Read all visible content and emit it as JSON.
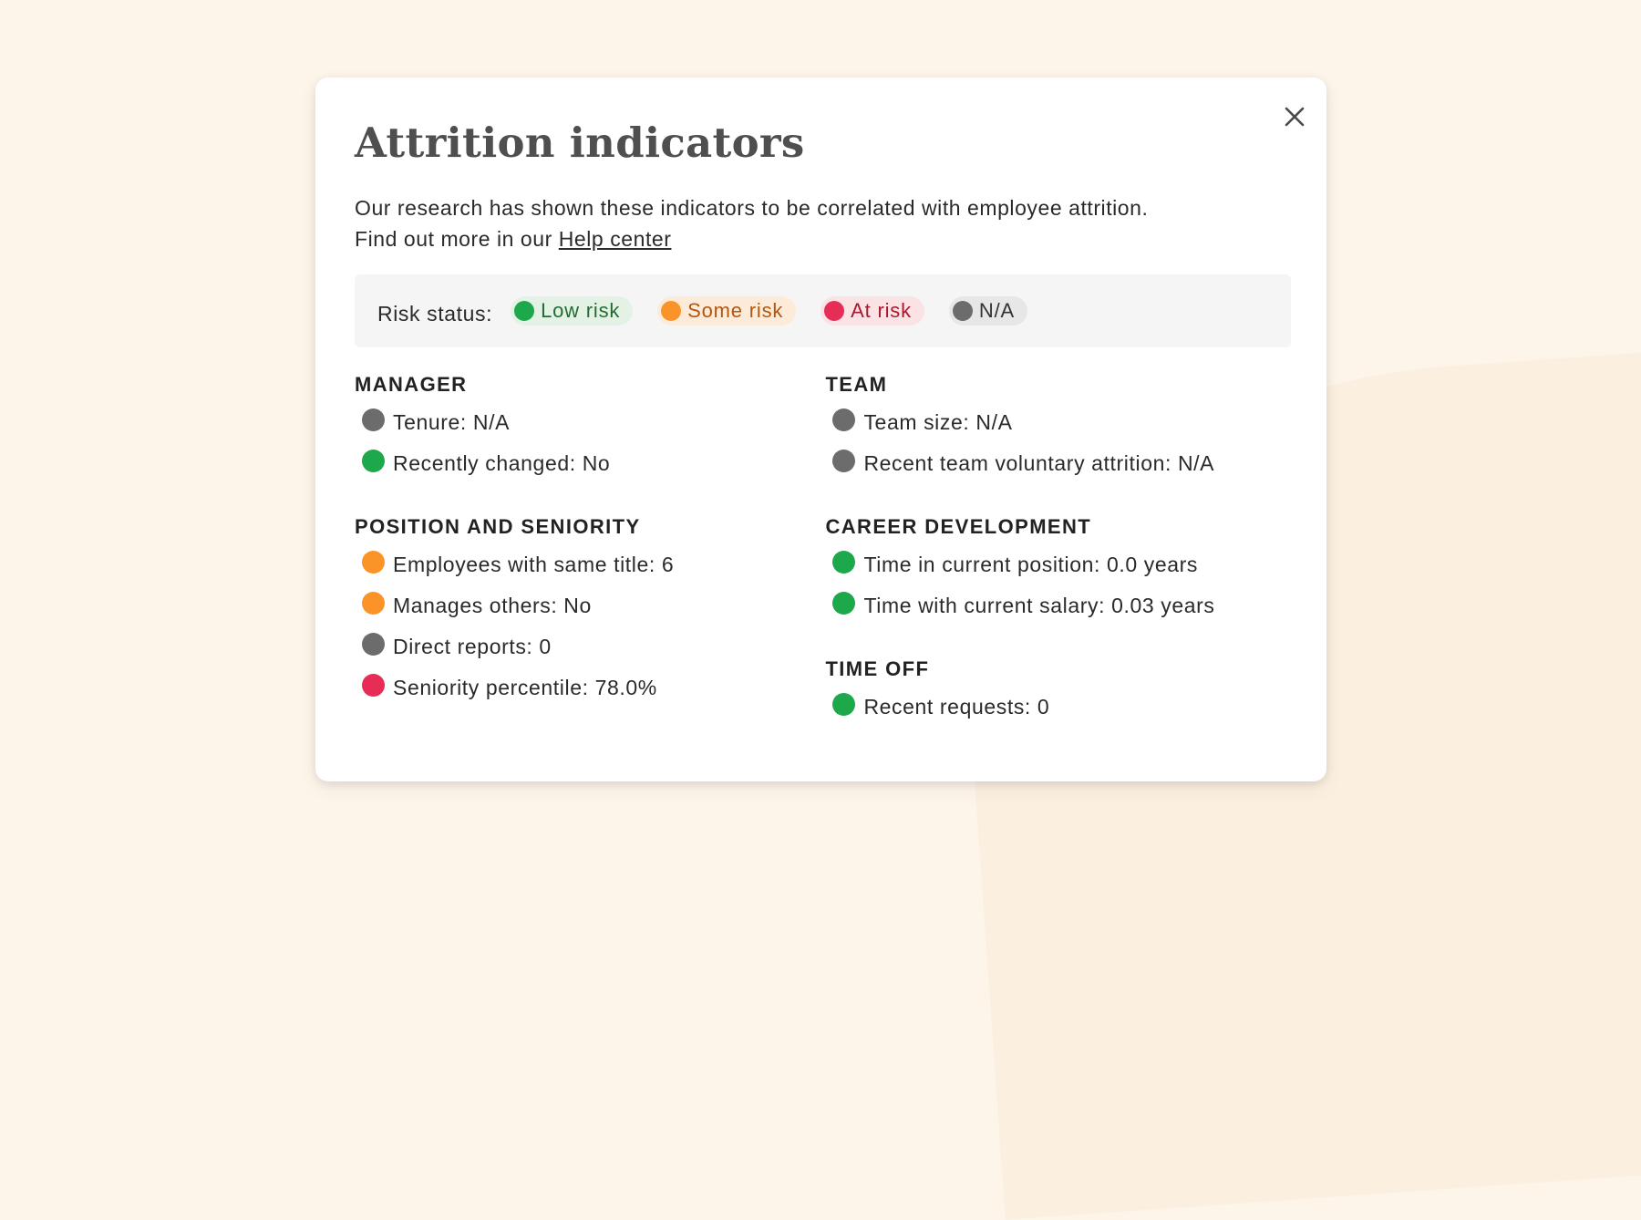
{
  "modal": {
    "title": "Attrition indicators",
    "description_line1": "Our research has shown these indicators to be correlated with employee attrition.",
    "description_prefix": "Find out more in our ",
    "help_link": "Help center"
  },
  "legend": {
    "label": "Risk status:",
    "low": "Low risk",
    "some": "Some risk",
    "at": "At risk",
    "na": "N/A"
  },
  "colors": {
    "low_risk": "#1ea84c",
    "some_risk": "#fb9428",
    "at_risk": "#e52d55",
    "na": "#6c6c6c"
  },
  "sections": {
    "manager": {
      "title": "MANAGER",
      "items": [
        {
          "text": "Tenure: N/A",
          "status": "na"
        },
        {
          "text": "Recently changed: No",
          "status": "low"
        }
      ]
    },
    "position": {
      "title": "POSITION AND SENIORITY",
      "items": [
        {
          "text": "Employees with same title: 6",
          "status": "some"
        },
        {
          "text": "Manages others: No",
          "status": "some"
        },
        {
          "text": "Direct reports: 0",
          "status": "na"
        },
        {
          "text": "Seniority percentile: 78.0%",
          "status": "at"
        }
      ]
    },
    "team": {
      "title": "TEAM",
      "items": [
        {
          "text": "Team size: N/A",
          "status": "na"
        },
        {
          "text": "Recent team voluntary attrition: N/A",
          "status": "na"
        }
      ]
    },
    "career": {
      "title": "CAREER DEVELOPMENT",
      "items": [
        {
          "text": "Time in current position: 0.0 years",
          "status": "low"
        },
        {
          "text": "Time with current salary: 0.03 years",
          "status": "low"
        }
      ]
    },
    "timeoff": {
      "title": "TIME OFF",
      "items": [
        {
          "text": "Recent requests: 0",
          "status": "low"
        }
      ]
    }
  }
}
